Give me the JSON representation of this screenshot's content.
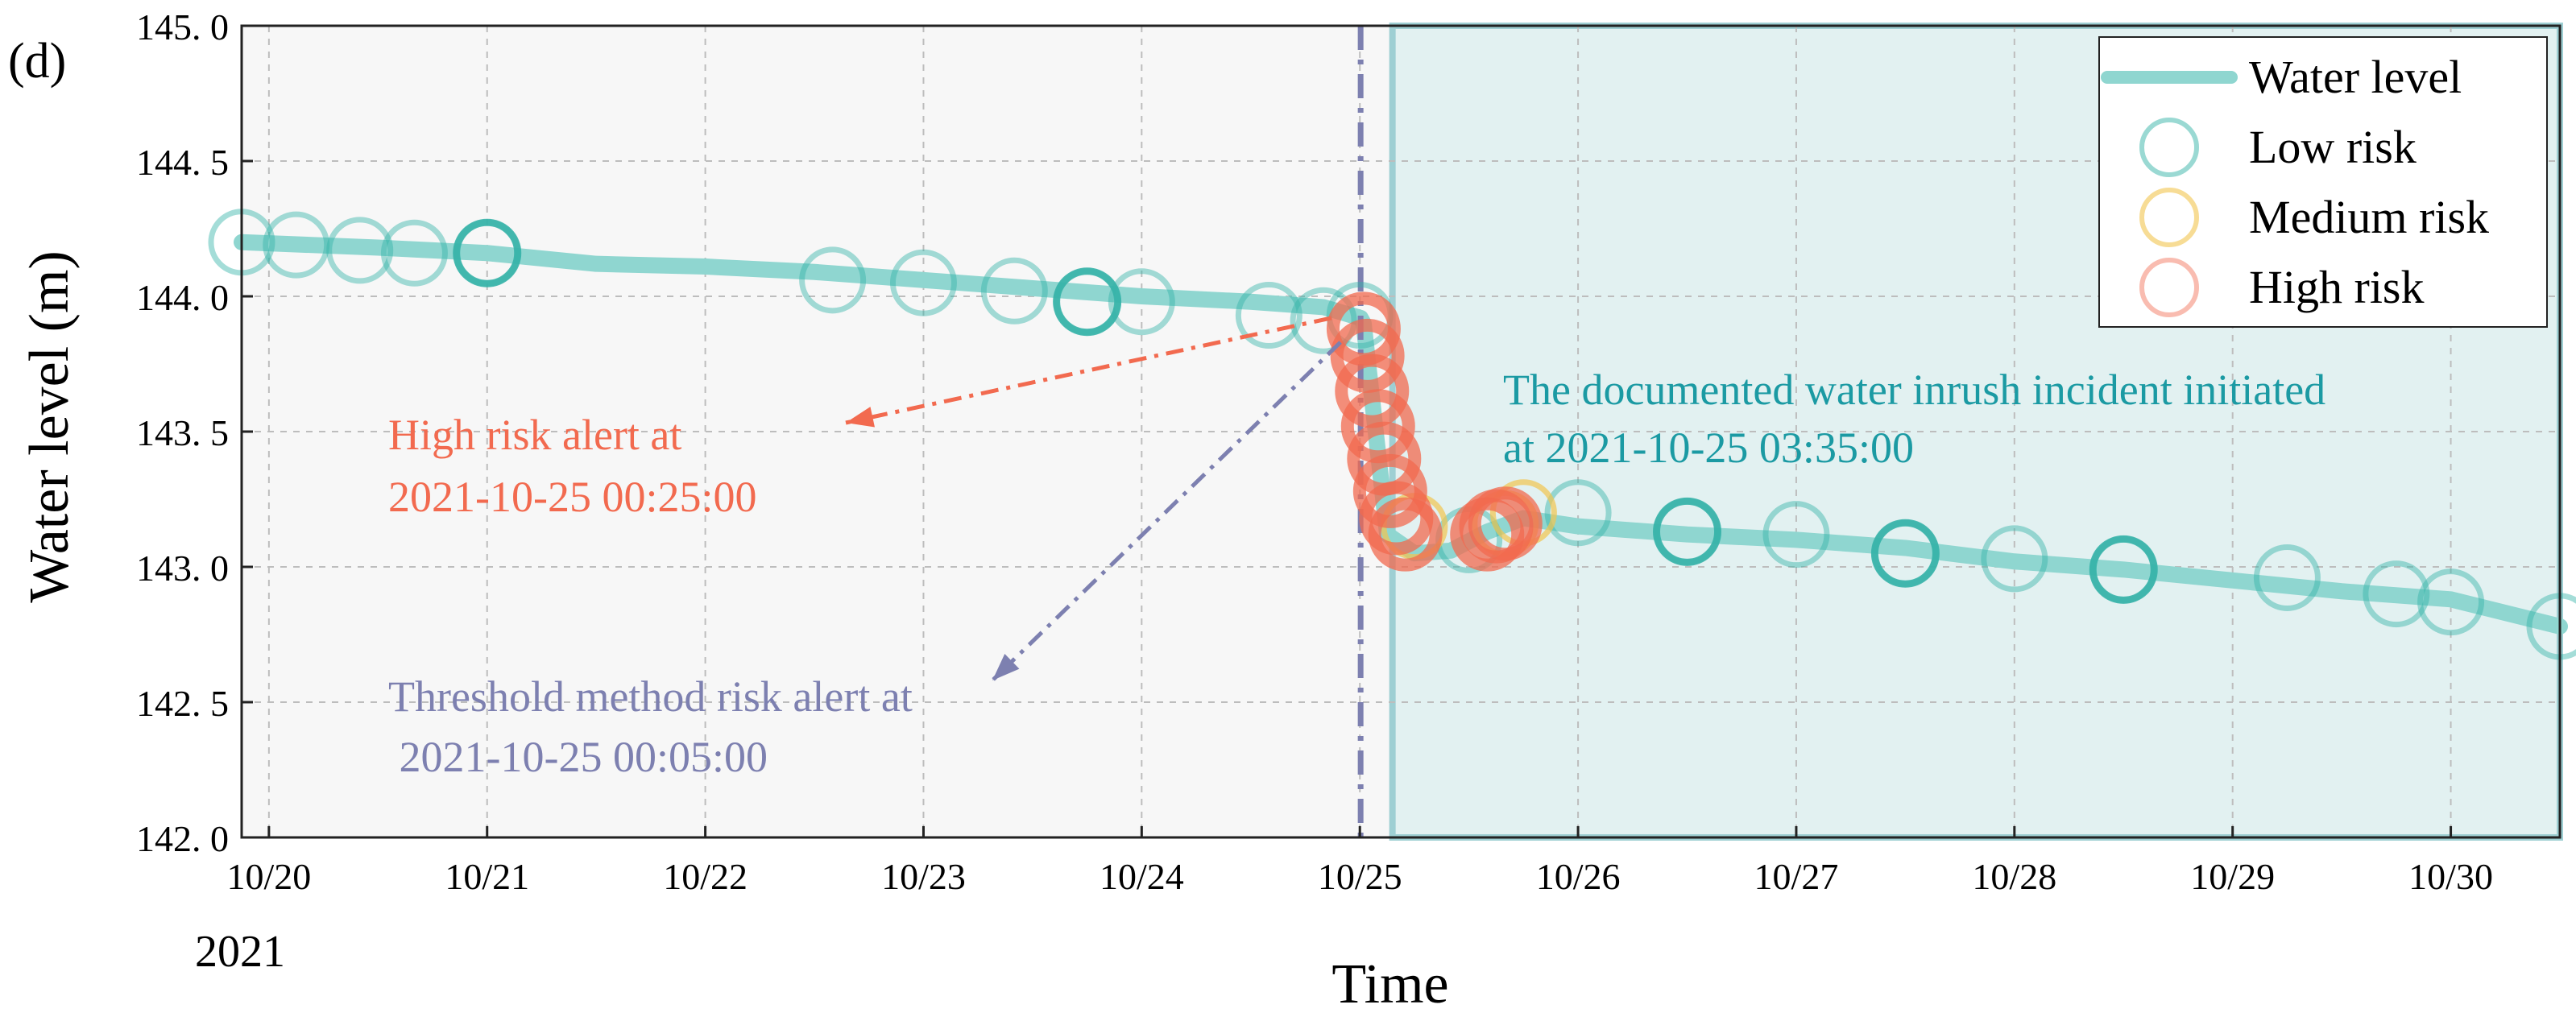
{
  "panel_label": "(d)",
  "colors": {
    "background_pre": "#f7f7f7",
    "incident_shade": "#e2f1f1",
    "incident_border": "#9ecfd3",
    "water_line": "#8fd6d0",
    "low_risk": "#36b3a8",
    "medium_risk": "#f2c44e",
    "high_risk": "#f26a4f",
    "threshold": "#7d80b0",
    "incident_text": "#1b9aa3",
    "grid": "#bdbdbd"
  },
  "chart_data": {
    "type": "line",
    "title": "",
    "xlabel": "Time",
    "ylabel": "Water level (m)",
    "year_label": "2021",
    "xlim": [
      "2021-10-19 21:00",
      "2021-10-30 12:00"
    ],
    "ylim": [
      142.0,
      145.0
    ],
    "xticks": [
      {
        "date": "2021-10-20 00:00",
        "label": "10/20"
      },
      {
        "date": "2021-10-21 00:00",
        "label": "10/21"
      },
      {
        "date": "2021-10-22 00:00",
        "label": "10/22"
      },
      {
        "date": "2021-10-23 00:00",
        "label": "10/23"
      },
      {
        "date": "2021-10-24 00:00",
        "label": "10/24"
      },
      {
        "date": "2021-10-25 00:00",
        "label": "10/25"
      },
      {
        "date": "2021-10-26 00:00",
        "label": "10/26"
      },
      {
        "date": "2021-10-27 00:00",
        "label": "10/27"
      },
      {
        "date": "2021-10-28 00:00",
        "label": "10/28"
      },
      {
        "date": "2021-10-29 00:00",
        "label": "10/29"
      },
      {
        "date": "2021-10-30 00:00",
        "label": "10/30"
      }
    ],
    "yticks": [
      {
        "value": 145.0,
        "label": "145. 0"
      },
      {
        "value": 144.5,
        "label": "144. 5"
      },
      {
        "value": 144.0,
        "label": "144. 0"
      },
      {
        "value": 143.5,
        "label": "143. 5"
      },
      {
        "value": 143.0,
        "label": "143. 0"
      },
      {
        "value": 142.5,
        "label": "142. 5"
      },
      {
        "value": 142.0,
        "label": "142. 0"
      }
    ],
    "grid": true,
    "legend_position": "top-right",
    "legend": [
      "Water level",
      "Low risk",
      "Medium risk",
      "High risk"
    ],
    "series": [
      {
        "name": "Water level",
        "x": [
          "2021-10-19 21:00",
          "2021-10-20 12:00",
          "2021-10-21 00:00",
          "2021-10-21 12:00",
          "2021-10-22 00:00",
          "2021-10-22 12:00",
          "2021-10-23 00:00",
          "2021-10-23 12:00",
          "2021-10-24 00:00",
          "2021-10-24 12:00",
          "2021-10-24 20:00",
          "2021-10-25 00:05",
          "2021-10-25 00:25",
          "2021-10-25 03:00",
          "2021-10-25 06:00",
          "2021-10-25 10:00",
          "2021-10-25 14:00",
          "2021-10-25 18:00",
          "2021-10-26 00:00",
          "2021-10-26 12:00",
          "2021-10-27 00:00",
          "2021-10-27 12:00",
          "2021-10-28 00:00",
          "2021-10-28 12:00",
          "2021-10-29 00:00",
          "2021-10-29 12:00",
          "2021-10-30 00:00",
          "2021-10-30 12:00"
        ],
        "y": [
          144.2,
          144.18,
          144.16,
          144.12,
          144.11,
          144.09,
          144.06,
          144.03,
          144.0,
          143.98,
          143.96,
          143.92,
          143.9,
          143.12,
          143.05,
          143.06,
          143.13,
          143.18,
          143.15,
          143.12,
          143.1,
          143.07,
          143.02,
          142.99,
          142.95,
          142.91,
          142.88,
          142.78
        ]
      },
      {
        "name": "Low risk",
        "x": [
          "2021-10-19 21:00",
          "2021-10-20 03:00",
          "2021-10-20 10:00",
          "2021-10-20 16:00",
          "2021-10-21 00:00",
          "2021-10-22 14:00",
          "2021-10-23 00:00",
          "2021-10-23 10:00",
          "2021-10-23 18:00",
          "2021-10-24 00:00",
          "2021-10-24 14:00",
          "2021-10-24 20:00",
          "2021-10-25 00:00",
          "2021-10-25 12:00",
          "2021-10-26 00:00",
          "2021-10-26 12:00",
          "2021-10-27 00:00",
          "2021-10-27 12:00",
          "2021-10-28 00:00",
          "2021-10-28 12:00",
          "2021-10-29 06:00",
          "2021-10-29 18:00",
          "2021-10-30 00:00",
          "2021-10-30 12:00"
        ],
        "y": [
          144.2,
          144.19,
          144.17,
          144.16,
          144.16,
          144.06,
          144.05,
          144.02,
          143.98,
          143.98,
          143.93,
          143.91,
          143.93,
          143.1,
          143.2,
          143.13,
          143.12,
          143.05,
          143.03,
          142.99,
          142.96,
          142.9,
          142.87,
          142.78
        ]
      },
      {
        "name": "Medium risk",
        "x": [
          "2021-10-25 06:00",
          "2021-10-25 16:00",
          "2021-10-25 18:00"
        ],
        "y": [
          143.15,
          143.16,
          143.2
        ]
      },
      {
        "name": "High risk",
        "x": [
          "2021-10-25 00:25",
          "2021-10-25 00:50",
          "2021-10-25 01:20",
          "2021-10-25 02:00",
          "2021-10-25 02:40",
          "2021-10-25 03:20",
          "2021-10-25 04:00",
          "2021-10-25 05:00",
          "2021-10-25 14:00",
          "2021-10-25 15:00",
          "2021-10-25 16:00"
        ],
        "y": [
          143.88,
          143.78,
          143.65,
          143.52,
          143.4,
          143.28,
          143.18,
          143.12,
          143.12,
          143.15,
          143.16
        ]
      }
    ],
    "incident_period": {
      "start": "2021-10-25 03:35",
      "end": "2021-10-30 12:00"
    },
    "threshold_line": {
      "date": "2021-10-25 00:05"
    },
    "annotations": [
      {
        "text": "High risk alert at",
        "text2": "2021-10-25 00:25:00",
        "x": "2021-10-25 00:25",
        "y": 143.92
      },
      {
        "text": "Threshold method risk alert at",
        "text2": " 2021-10-25 00:05:00",
        "x": "2021-10-25 00:05",
        "y": 143.86
      },
      {
        "text": "The documented water inrush incident initiated",
        "text2": "at 2021-10-25 03:35:00"
      }
    ]
  }
}
